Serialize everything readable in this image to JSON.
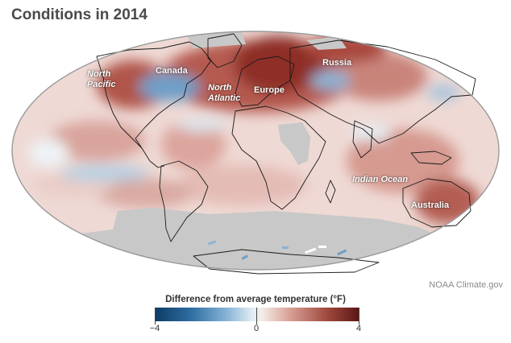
{
  "title": "Conditions in 2014",
  "credit": "NOAA Climate.gov",
  "legend": {
    "title": "Difference from average temperature (°F)",
    "ticks": [
      "−4",
      "0",
      "4"
    ],
    "colors": {
      "cold": "#0d3b66",
      "neutral": "#f3f1ef",
      "warm": "#5b1514",
      "no_data": "#c8c8c8"
    }
  },
  "places": {
    "north_pacific_line1": "North",
    "north_pacific_line2": "Pacific",
    "canada": "Canada",
    "north_atlantic_line1": "North",
    "north_atlantic_line2": "Atlantic",
    "europe": "Europe",
    "russia": "Russia",
    "indian_ocean": "Indian Ocean",
    "australia": "Australia"
  }
}
